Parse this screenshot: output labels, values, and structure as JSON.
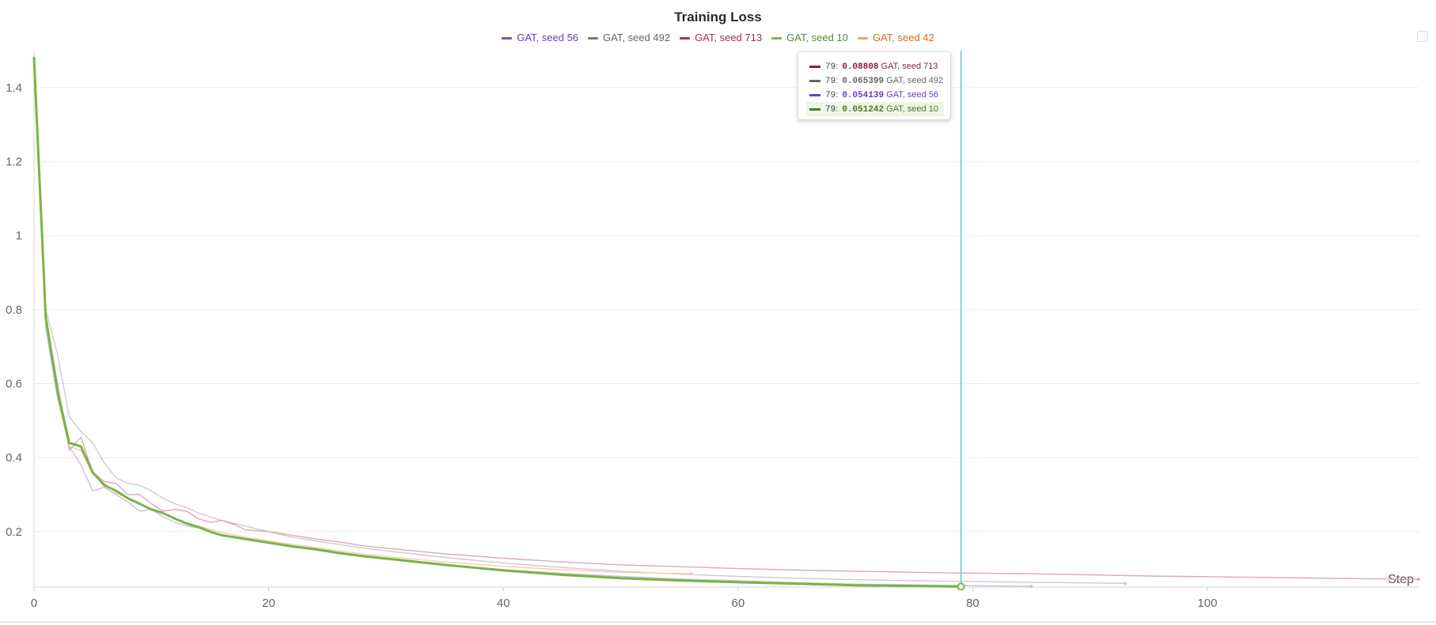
{
  "chart_data": {
    "type": "line",
    "title": "Training Loss",
    "xlabel": "Step",
    "ylabel": "",
    "xlim": [
      0,
      118
    ],
    "ylim": [
      0.05,
      1.5
    ],
    "x_ticks": [
      0,
      20,
      40,
      60,
      80,
      100
    ],
    "y_ticks": [
      0.2,
      0.4,
      0.6,
      0.8,
      1,
      1.2,
      1.4
    ],
    "grid": "horizontal",
    "legend_position": "top",
    "cursor_x": 79,
    "series": [
      {
        "name": "GAT, seed 56",
        "color": "#7b4fbf",
        "faded_color": "#cdbde6",
        "x": [
          0,
          1,
          2,
          3,
          4,
          5,
          6,
          7,
          8,
          9,
          10,
          11,
          12,
          13,
          14,
          15,
          16,
          18,
          20,
          22,
          24,
          26,
          28,
          30,
          35,
          40,
          45,
          50,
          55,
          60,
          65,
          70,
          75,
          79,
          85
        ],
        "values": [
          1.47,
          0.75,
          0.56,
          0.43,
          0.38,
          0.31,
          0.32,
          0.3,
          0.28,
          0.255,
          0.26,
          0.24,
          0.225,
          0.215,
          0.21,
          0.2,
          0.19,
          0.18,
          0.17,
          0.16,
          0.15,
          0.14,
          0.132,
          0.125,
          0.11,
          0.097,
          0.087,
          0.079,
          0.072,
          0.067,
          0.062,
          0.058,
          0.056,
          0.054139,
          0.052
        ]
      },
      {
        "name": "GAT, seed 492",
        "color": "#777777",
        "faded_color": "#cccccc",
        "x": [
          0,
          1,
          2,
          3,
          4,
          5,
          6,
          7,
          8,
          9,
          10,
          11,
          12,
          13,
          14,
          15,
          16,
          18,
          20,
          22,
          24,
          26,
          28,
          30,
          35,
          40,
          45,
          50,
          55,
          60,
          65,
          70,
          75,
          79,
          85,
          93
        ],
        "values": [
          1.45,
          0.8,
          0.68,
          0.51,
          0.47,
          0.44,
          0.385,
          0.345,
          0.33,
          0.325,
          0.31,
          0.29,
          0.275,
          0.265,
          0.25,
          0.24,
          0.23,
          0.215,
          0.2,
          0.185,
          0.175,
          0.165,
          0.156,
          0.148,
          0.13,
          0.115,
          0.103,
          0.093,
          0.085,
          0.079,
          0.074,
          0.07,
          0.067,
          0.065399,
          0.063,
          0.06
        ]
      },
      {
        "name": "GAT, seed 713",
        "color": "#a0305a",
        "faded_color": "#d9a9bd",
        "x": [
          0,
          1,
          2,
          3,
          4,
          5,
          6,
          7,
          8,
          9,
          10,
          11,
          12,
          13,
          14,
          15,
          16,
          17,
          18,
          20,
          22,
          24,
          26,
          28,
          30,
          35,
          40,
          45,
          50,
          55,
          60,
          65,
          70,
          75,
          79,
          85,
          90,
          95,
          100,
          105,
          110,
          118
        ],
        "values": [
          1.46,
          0.78,
          0.6,
          0.42,
          0.455,
          0.36,
          0.335,
          0.33,
          0.3,
          0.3,
          0.275,
          0.255,
          0.26,
          0.255,
          0.235,
          0.225,
          0.23,
          0.22,
          0.205,
          0.2,
          0.19,
          0.18,
          0.172,
          0.162,
          0.155,
          0.14,
          0.128,
          0.118,
          0.11,
          0.105,
          0.1,
          0.096,
          0.093,
          0.09,
          0.08808,
          0.086,
          0.083,
          0.08,
          0.078,
          0.076,
          0.074,
          0.071
        ]
      },
      {
        "name": "GAT, seed 10",
        "color": "#7cb342",
        "faded_color": "#7cb342",
        "x": [
          0,
          1,
          2,
          3,
          4,
          5,
          6,
          7,
          8,
          9,
          10,
          11,
          12,
          13,
          14,
          15,
          16,
          18,
          20,
          22,
          24,
          26,
          28,
          30,
          35,
          40,
          45,
          50,
          55,
          60,
          65,
          70,
          75,
          79
        ],
        "values": [
          1.48,
          0.78,
          0.58,
          0.44,
          0.43,
          0.36,
          0.325,
          0.31,
          0.29,
          0.275,
          0.26,
          0.25,
          0.235,
          0.222,
          0.212,
          0.2,
          0.19,
          0.18,
          0.17,
          0.16,
          0.152,
          0.142,
          0.134,
          0.127,
          0.11,
          0.095,
          0.083,
          0.074,
          0.068,
          0.063,
          0.059,
          0.055,
          0.053,
          0.051242
        ]
      },
      {
        "name": "GAT, seed 42",
        "color": "#f0a070",
        "faded_color": "#f5cdb3",
        "x": [
          0,
          1,
          2,
          3,
          4,
          5,
          6,
          7,
          8,
          9,
          10,
          12,
          14,
          16,
          18,
          20,
          22,
          24,
          26,
          28,
          30,
          35,
          40,
          45,
          50,
          56
        ],
        "values": [
          1.46,
          0.76,
          0.57,
          0.43,
          0.42,
          0.355,
          0.33,
          0.305,
          0.29,
          0.275,
          0.262,
          0.235,
          0.215,
          0.198,
          0.185,
          0.175,
          0.165,
          0.157,
          0.148,
          0.14,
          0.133,
          0.118,
          0.106,
          0.097,
          0.09,
          0.086
        ]
      }
    ],
    "tooltip": {
      "step": "79",
      "rows": [
        {
          "value": "0.08808",
          "series": "GAT, seed 713",
          "color": "#8b1d4a",
          "active": false
        },
        {
          "value": "0.065399",
          "series": "GAT, seed 492",
          "color": "#666666",
          "active": false
        },
        {
          "value": "0.054139",
          "series": "GAT, seed 56",
          "color": "#6a3fb5",
          "active": false
        },
        {
          "value": "0.051242",
          "series": "GAT, seed 10",
          "color": "#4f7a1f",
          "active": true
        }
      ]
    },
    "legend_text_colors": [
      "#6a3fb5",
      "#666666",
      "#a0305a",
      "#558b2f",
      "#d2691e"
    ]
  }
}
